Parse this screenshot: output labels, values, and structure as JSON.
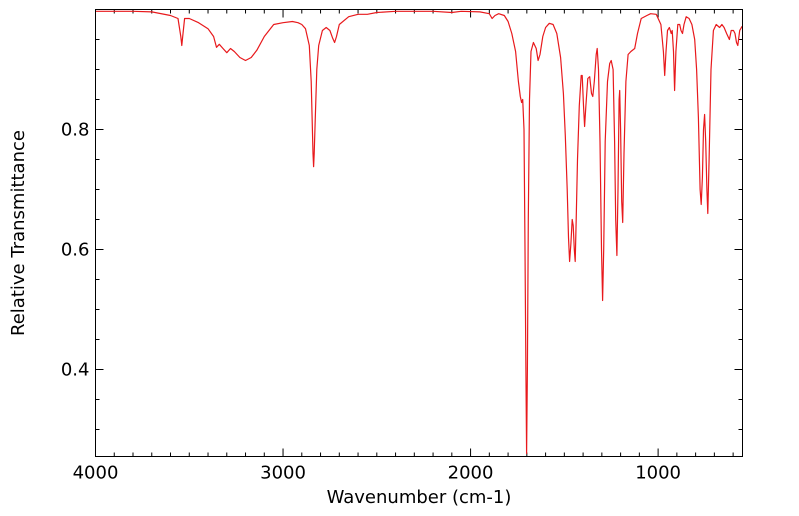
{
  "chart_data": {
    "type": "line",
    "title": "",
    "xlabel": "Wavenumber (cm-1)",
    "ylabel": "Relative Transmittance",
    "xlim": [
      4000,
      550
    ],
    "ylim": [
      0.255,
      1.0
    ],
    "x_reversed": true,
    "grid": false,
    "legend": "none",
    "x_ticks": [
      4000,
      3000,
      2000,
      1000
    ],
    "x_tick_labels": [
      "4000",
      "3000",
      "2000",
      "1000"
    ],
    "y_ticks": [
      0.4,
      0.6,
      0.8
    ],
    "y_tick_labels": [
      "0.4",
      "0.6",
      "0.8"
    ],
    "series": [
      {
        "color": "#e8191c",
        "points": [
          [
            4000,
            0.997
          ],
          [
            3800,
            0.997
          ],
          [
            3700,
            0.996
          ],
          [
            3600,
            0.99
          ],
          [
            3560,
            0.985
          ],
          [
            3545,
            0.955
          ],
          [
            3540,
            0.94
          ],
          [
            3535,
            0.955
          ],
          [
            3525,
            0.985
          ],
          [
            3500,
            0.985
          ],
          [
            3450,
            0.978
          ],
          [
            3400,
            0.968
          ],
          [
            3370,
            0.955
          ],
          [
            3355,
            0.937
          ],
          [
            3340,
            0.942
          ],
          [
            3320,
            0.935
          ],
          [
            3300,
            0.928
          ],
          [
            3280,
            0.935
          ],
          [
            3260,
            0.93
          ],
          [
            3230,
            0.92
          ],
          [
            3200,
            0.915
          ],
          [
            3170,
            0.92
          ],
          [
            3140,
            0.932
          ],
          [
            3100,
            0.955
          ],
          [
            3050,
            0.975
          ],
          [
            3000,
            0.978
          ],
          [
            2950,
            0.98
          ],
          [
            2920,
            0.978
          ],
          [
            2900,
            0.975
          ],
          [
            2880,
            0.968
          ],
          [
            2860,
            0.94
          ],
          [
            2850,
            0.88
          ],
          [
            2845,
            0.82
          ],
          [
            2840,
            0.76
          ],
          [
            2837,
            0.738
          ],
          [
            2834,
            0.76
          ],
          [
            2828,
            0.82
          ],
          [
            2820,
            0.9
          ],
          [
            2810,
            0.94
          ],
          [
            2790,
            0.965
          ],
          [
            2770,
            0.97
          ],
          [
            2750,
            0.965
          ],
          [
            2735,
            0.952
          ],
          [
            2725,
            0.945
          ],
          [
            2715,
            0.955
          ],
          [
            2700,
            0.975
          ],
          [
            2650,
            0.988
          ],
          [
            2600,
            0.992
          ],
          [
            2550,
            0.992
          ],
          [
            2500,
            0.995
          ],
          [
            2400,
            0.997
          ],
          [
            2300,
            0.997
          ],
          [
            2200,
            0.997
          ],
          [
            2100,
            0.995
          ],
          [
            2050,
            0.997
          ],
          [
            1950,
            0.996
          ],
          [
            1900,
            0.993
          ],
          [
            1885,
            0.985
          ],
          [
            1870,
            0.99
          ],
          [
            1850,
            0.993
          ],
          [
            1820,
            0.99
          ],
          [
            1800,
            0.98
          ],
          [
            1780,
            0.96
          ],
          [
            1760,
            0.93
          ],
          [
            1745,
            0.88
          ],
          [
            1735,
            0.855
          ],
          [
            1728,
            0.845
          ],
          [
            1722,
            0.85
          ],
          [
            1715,
            0.8
          ],
          [
            1710,
            0.6
          ],
          [
            1705,
            0.4
          ],
          [
            1701,
            0.26
          ],
          [
            1697,
            0.4
          ],
          [
            1692,
            0.65
          ],
          [
            1686,
            0.85
          ],
          [
            1678,
            0.93
          ],
          [
            1665,
            0.945
          ],
          [
            1650,
            0.935
          ],
          [
            1640,
            0.915
          ],
          [
            1630,
            0.925
          ],
          [
            1615,
            0.955
          ],
          [
            1600,
            0.97
          ],
          [
            1580,
            0.977
          ],
          [
            1560,
            0.975
          ],
          [
            1540,
            0.96
          ],
          [
            1520,
            0.92
          ],
          [
            1505,
            0.86
          ],
          [
            1495,
            0.79
          ],
          [
            1485,
            0.7
          ],
          [
            1478,
            0.62
          ],
          [
            1472,
            0.58
          ],
          [
            1465,
            0.61
          ],
          [
            1458,
            0.65
          ],
          [
            1453,
            0.64
          ],
          [
            1447,
            0.6
          ],
          [
            1442,
            0.58
          ],
          [
            1437,
            0.65
          ],
          [
            1430,
            0.75
          ],
          [
            1420,
            0.84
          ],
          [
            1410,
            0.89
          ],
          [
            1405,
            0.89
          ],
          [
            1398,
            0.84
          ],
          [
            1392,
            0.805
          ],
          [
            1385,
            0.84
          ],
          [
            1375,
            0.885
          ],
          [
            1365,
            0.888
          ],
          [
            1355,
            0.86
          ],
          [
            1348,
            0.855
          ],
          [
            1340,
            0.88
          ],
          [
            1330,
            0.925
          ],
          [
            1325,
            0.935
          ],
          [
            1318,
            0.9
          ],
          [
            1310,
            0.78
          ],
          [
            1302,
            0.6
          ],
          [
            1296,
            0.515
          ],
          [
            1290,
            0.6
          ],
          [
            1282,
            0.78
          ],
          [
            1270,
            0.88
          ],
          [
            1258,
            0.91
          ],
          [
            1250,
            0.915
          ],
          [
            1240,
            0.9
          ],
          [
            1232,
            0.78
          ],
          [
            1226,
            0.65
          ],
          [
            1220,
            0.59
          ],
          [
            1214,
            0.7
          ],
          [
            1208,
            0.85
          ],
          [
            1205,
            0.865
          ],
          [
            1200,
            0.8
          ],
          [
            1194,
            0.68
          ],
          [
            1189,
            0.645
          ],
          [
            1182,
            0.76
          ],
          [
            1172,
            0.88
          ],
          [
            1160,
            0.925
          ],
          [
            1145,
            0.93
          ],
          [
            1125,
            0.935
          ],
          [
            1110,
            0.96
          ],
          [
            1090,
            0.985
          ],
          [
            1060,
            0.99
          ],
          [
            1040,
            0.993
          ],
          [
            1010,
            0.992
          ],
          [
            985,
            0.975
          ],
          [
            972,
            0.93
          ],
          [
            965,
            0.89
          ],
          [
            958,
            0.93
          ],
          [
            950,
            0.965
          ],
          [
            940,
            0.97
          ],
          [
            930,
            0.96
          ],
          [
            925,
            0.965
          ],
          [
            918,
            0.93
          ],
          [
            912,
            0.865
          ],
          [
            905,
            0.93
          ],
          [
            895,
            0.975
          ],
          [
            885,
            0.975
          ],
          [
            878,
            0.965
          ],
          [
            870,
            0.96
          ],
          [
            862,
            0.975
          ],
          [
            850,
            0.988
          ],
          [
            835,
            0.985
          ],
          [
            820,
            0.975
          ],
          [
            805,
            0.95
          ],
          [
            795,
            0.9
          ],
          [
            785,
            0.82
          ],
          [
            776,
            0.7
          ],
          [
            770,
            0.675
          ],
          [
            764,
            0.72
          ],
          [
            758,
            0.8
          ],
          [
            752,
            0.825
          ],
          [
            746,
            0.78
          ],
          [
            740,
            0.7
          ],
          [
            735,
            0.66
          ],
          [
            728,
            0.75
          ],
          [
            718,
            0.9
          ],
          [
            705,
            0.965
          ],
          [
            690,
            0.975
          ],
          [
            672,
            0.97
          ],
          [
            660,
            0.975
          ],
          [
            648,
            0.97
          ],
          [
            635,
            0.96
          ],
          [
            620,
            0.95
          ],
          [
            610,
            0.965
          ],
          [
            598,
            0.965
          ],
          [
            590,
            0.96
          ],
          [
            582,
            0.945
          ],
          [
            575,
            0.94
          ],
          [
            565,
            0.965
          ],
          [
            552,
            0.972
          ]
        ]
      }
    ]
  }
}
